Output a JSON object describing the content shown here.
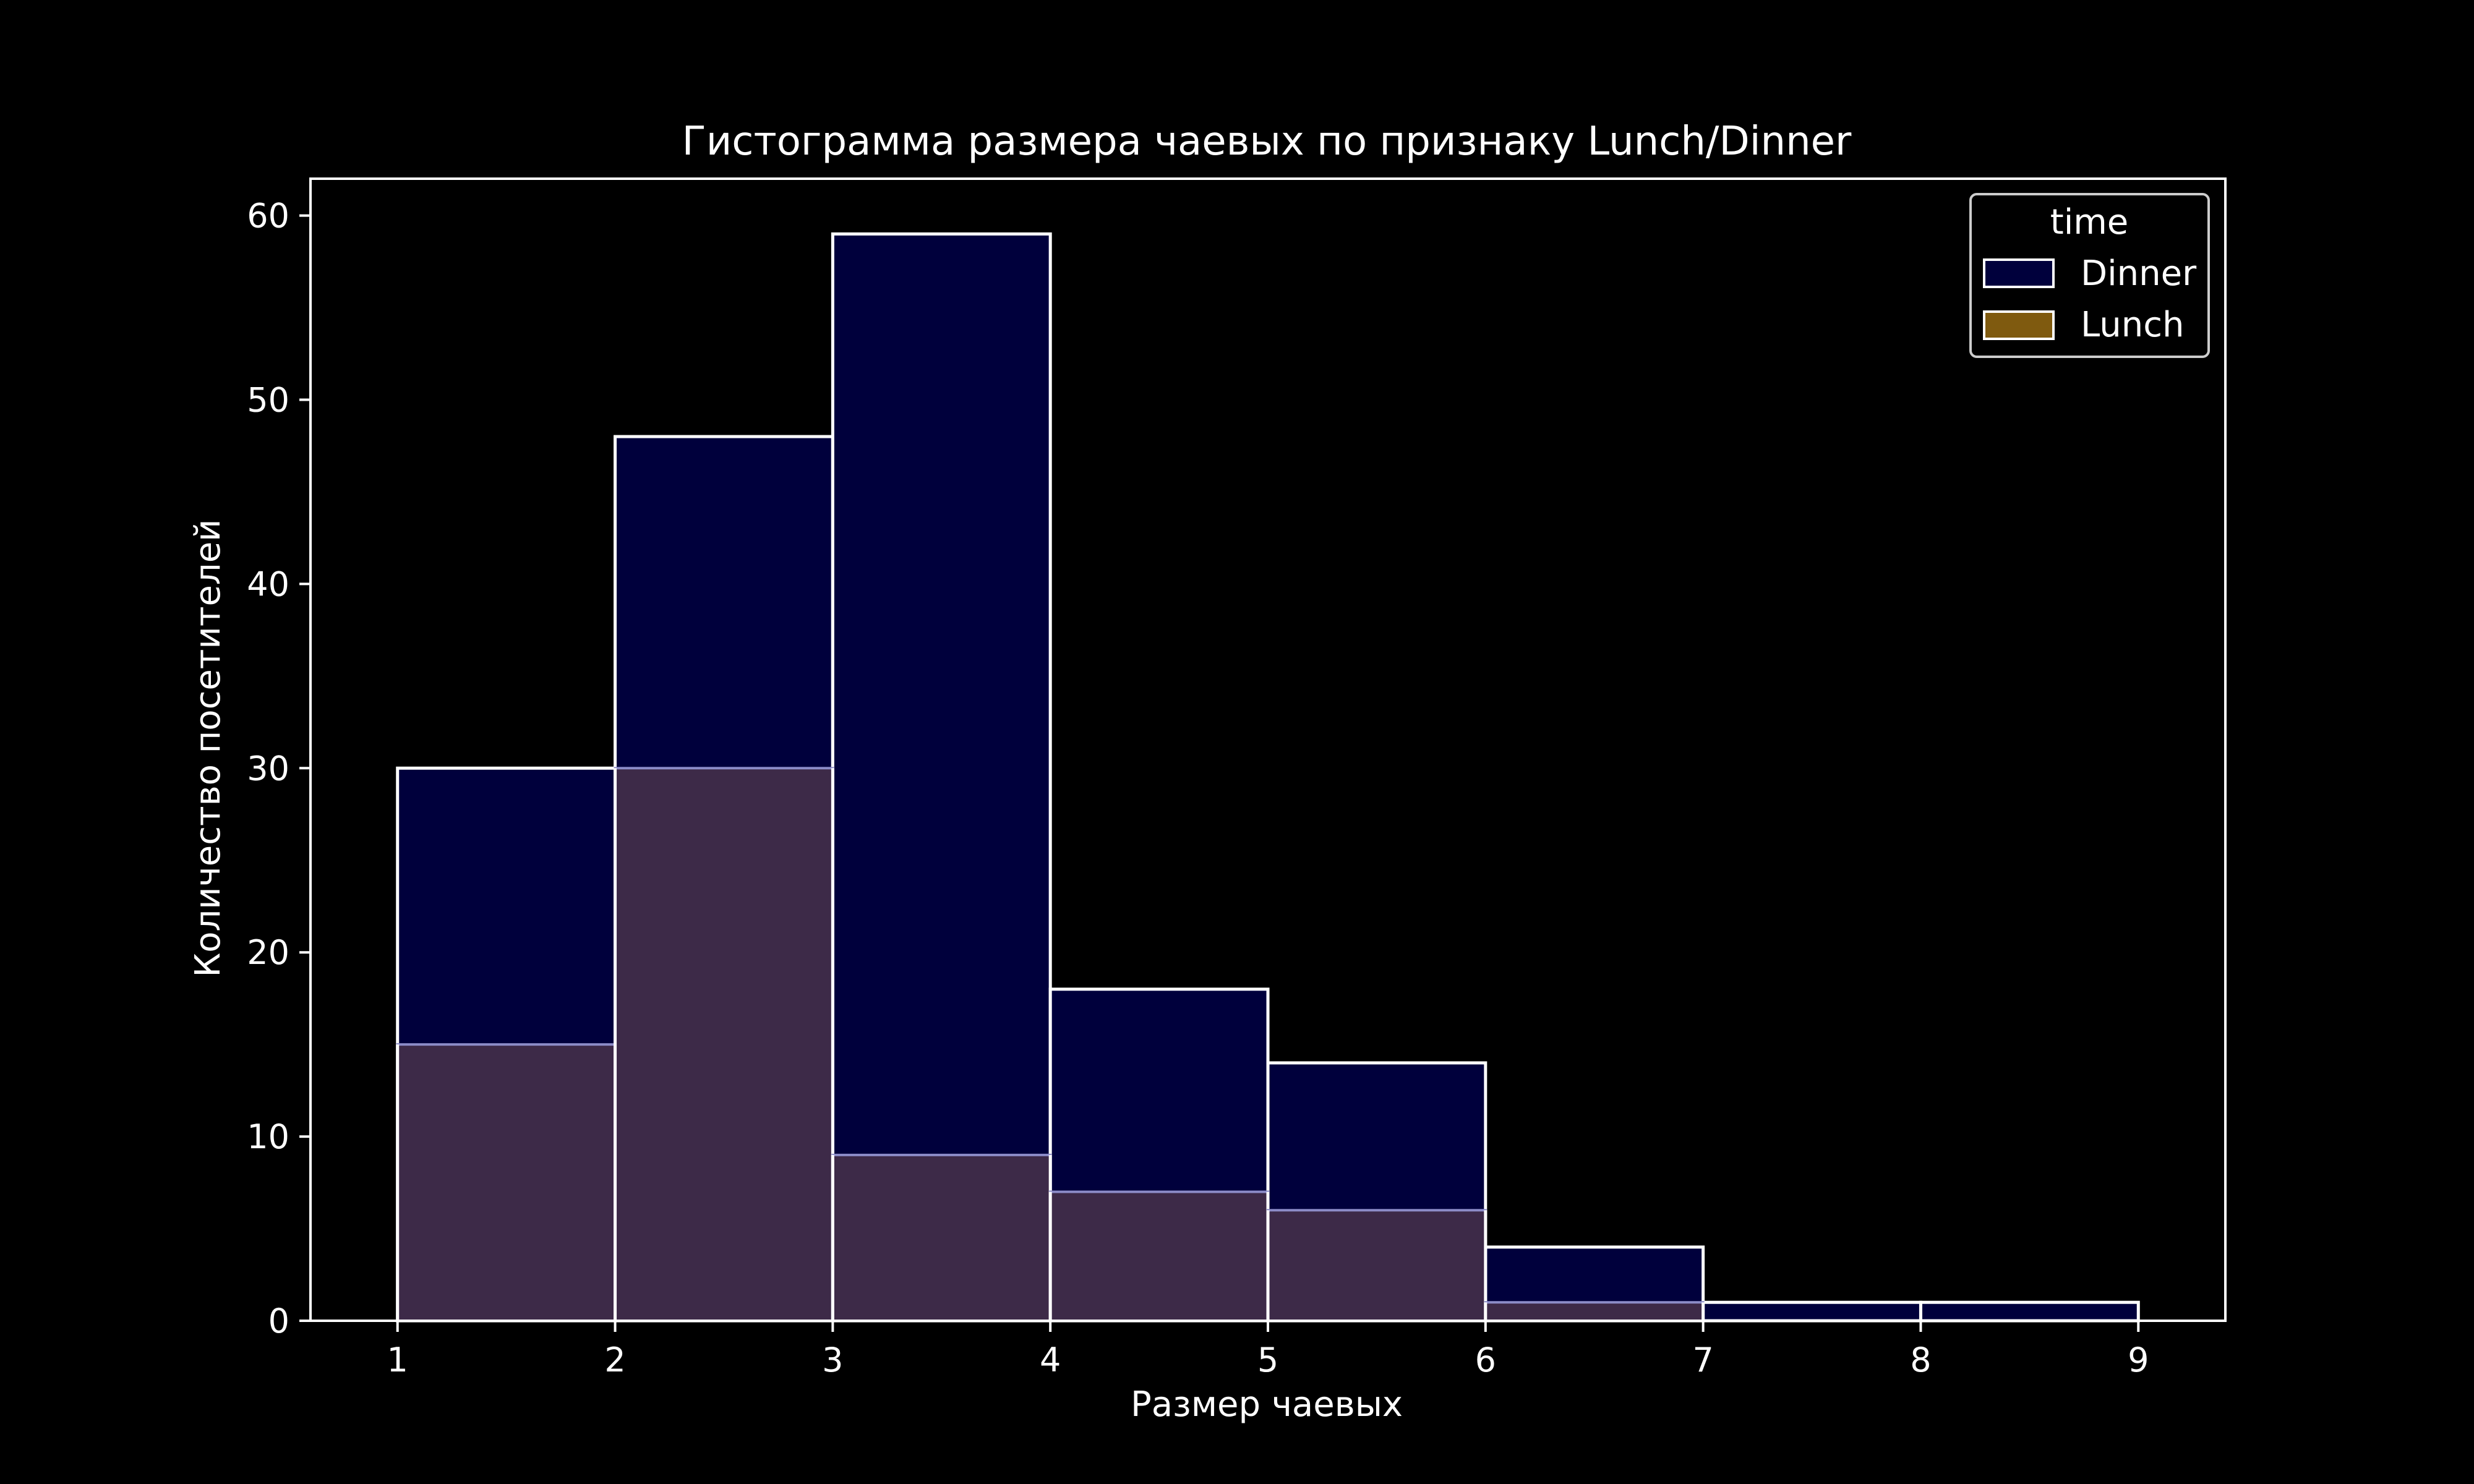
{
  "chart_data": {
    "type": "bar",
    "title": "Гистограмма размера чаевых по признаку Lunch/Dinner",
    "xlabel": "Размер чаевых",
    "ylabel": "Количество посетителей",
    "bin_edges": [
      1,
      2,
      3,
      4,
      5,
      6,
      7,
      8,
      9
    ],
    "x_ticks": [
      "1",
      "2",
      "3",
      "4",
      "5",
      "6",
      "7",
      "8",
      "9"
    ],
    "y_ticks": [
      "0",
      "10",
      "20",
      "30",
      "40",
      "50",
      "60"
    ],
    "xlim": [
      0.6,
      9.4
    ],
    "ylim": [
      0,
      62
    ],
    "grid": false,
    "legend": {
      "title": "time",
      "position": "top-right"
    },
    "series": [
      {
        "name": "Dinner",
        "color": "#000033",
        "fill": "#00003c",
        "values": [
          30,
          48,
          59,
          18,
          14,
          4,
          1,
          1
        ]
      },
      {
        "name": "Lunch",
        "color": "#7f5a0f",
        "fill": "#6b4d87",
        "values": [
          15,
          30,
          9,
          7,
          6,
          1,
          0,
          0
        ]
      }
    ],
    "colors": {
      "background": "#000000",
      "axes": "#ffffff",
      "bar_edge": "#ffffff",
      "dinner_fill": "#00003c",
      "lunch_overlap_fill": "#3d2a48",
      "lunch_legend_fill": "#7f5a0f",
      "lunch_edge": "#8c8cc8"
    }
  }
}
